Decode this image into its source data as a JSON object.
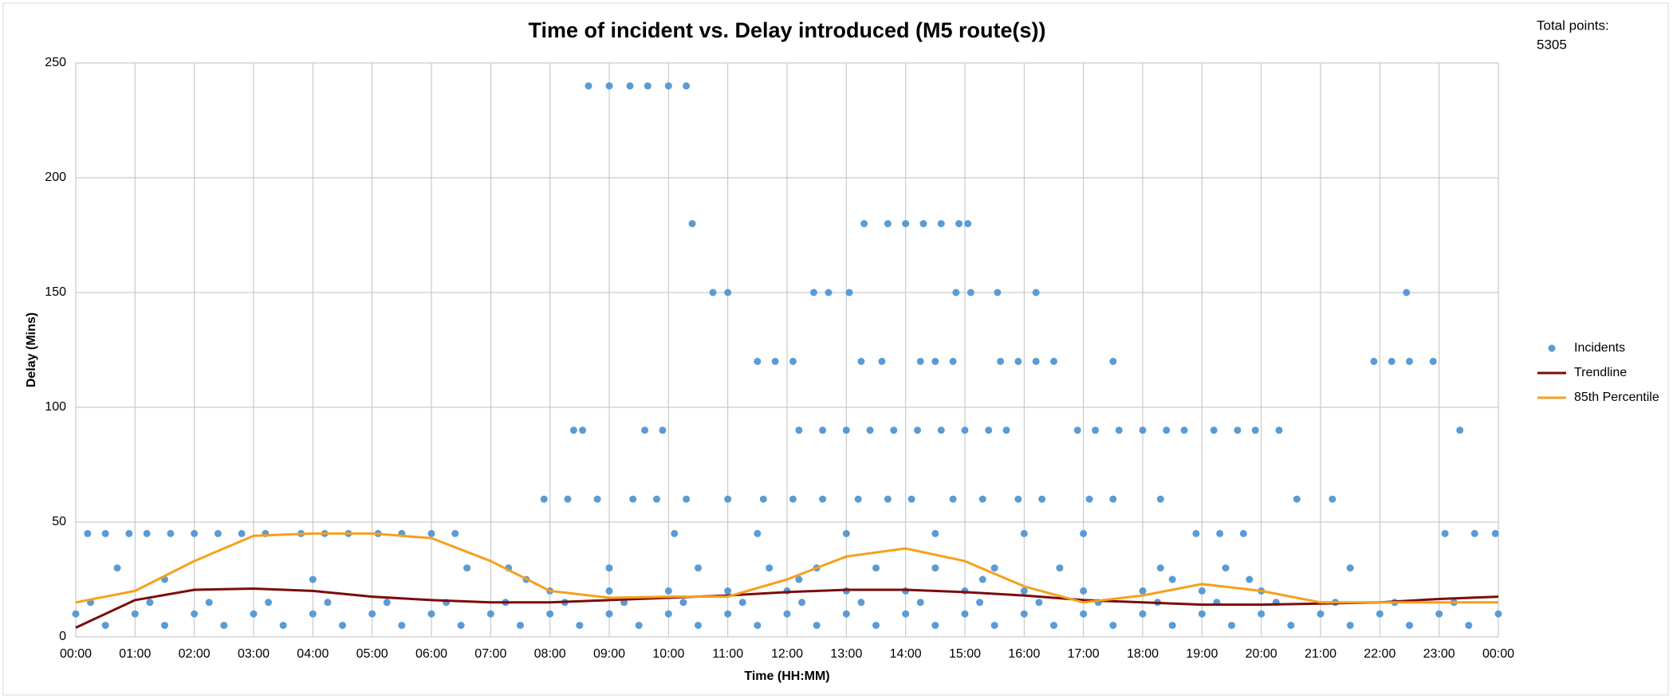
{
  "chart_data": {
    "type": "scatter",
    "title": "Time of incident vs. Delay introduced (M5 route(s))",
    "annotation": [
      "Total points:",
      "5305"
    ],
    "xlabel": "Time (HH:MM)",
    "ylabel": "Delay (Mins)",
    "xlim": [
      0,
      24
    ],
    "ylim": [
      0,
      250
    ],
    "grid": true,
    "legend": "right",
    "xticks": [
      {
        "value": 0,
        "label": "00:00"
      },
      {
        "value": 1,
        "label": "01:00"
      },
      {
        "value": 2,
        "label": "02:00"
      },
      {
        "value": 3,
        "label": "03:00"
      },
      {
        "value": 4,
        "label": "04:00"
      },
      {
        "value": 5,
        "label": "05:00"
      },
      {
        "value": 6,
        "label": "06:00"
      },
      {
        "value": 7,
        "label": "07:00"
      },
      {
        "value": 8,
        "label": "08:00"
      },
      {
        "value": 9,
        "label": "09:00"
      },
      {
        "value": 10,
        "label": "10:00"
      },
      {
        "value": 11,
        "label": "11:00"
      },
      {
        "value": 12,
        "label": "12:00"
      },
      {
        "value": 13,
        "label": "13:00"
      },
      {
        "value": 14,
        "label": "14:00"
      },
      {
        "value": 15,
        "label": "15:00"
      },
      {
        "value": 16,
        "label": "16:00"
      },
      {
        "value": 17,
        "label": "17:00"
      },
      {
        "value": 18,
        "label": "18:00"
      },
      {
        "value": 19,
        "label": "19:00"
      },
      {
        "value": 20,
        "label": "20:00"
      },
      {
        "value": 21,
        "label": "21:00"
      },
      {
        "value": 22,
        "label": "22:00"
      },
      {
        "value": 23,
        "label": "23:00"
      },
      {
        "value": 24,
        "label": "00:00"
      }
    ],
    "yticks": [
      0,
      50,
      100,
      150,
      200,
      250
    ],
    "series": [
      {
        "name": "Incidents",
        "type": "scatter",
        "color": "#5b9bd5",
        "x": [
          0.5,
          1.5,
          2.5,
          3.5,
          4.5,
          5.5,
          6.5,
          7.5,
          8.5,
          9.5,
          10.5,
          11.5,
          12.5,
          13.5,
          14.5,
          15.5,
          16.5,
          17.5,
          18.5,
          19.5,
          20.5,
          21.5,
          22.5,
          23.5,
          0,
          1,
          2,
          3,
          4,
          5,
          6,
          7,
          8,
          9,
          10,
          11,
          12,
          13,
          14,
          15,
          16,
          17,
          18,
          19,
          20,
          21,
          22,
          23,
          24,
          0.25,
          1.25,
          2.25,
          3.25,
          4.25,
          5.25,
          6.25,
          7.25,
          8.25,
          9.25,
          10.25,
          11.25,
          12.25,
          13.25,
          14.25,
          15.25,
          16.25,
          17.25,
          18.25,
          19.25,
          20.25,
          21.25,
          22.25,
          23.25,
          8,
          9,
          10,
          11,
          12,
          13,
          14,
          15,
          16,
          17,
          18,
          19,
          20,
          1.5,
          4,
          7.6,
          12.2,
          15.3,
          18.5,
          19.8,
          0.7,
          6.6,
          7.3,
          9,
          10.5,
          11.7,
          12.5,
          13.5,
          14.5,
          15.5,
          16.6,
          18.3,
          19.4,
          21.5,
          0.2,
          0.5,
          0.9,
          1.2,
          1.6,
          2,
          2.4,
          2.8,
          3.2,
          3.8,
          4.2,
          4.6,
          5.1,
          5.5,
          6,
          6.4,
          10.1,
          11.5,
          13,
          14.5,
          16,
          17,
          18.9,
          19.3,
          19.7,
          23.1,
          23.6,
          23.95,
          7.9,
          8.3,
          8.8,
          9.4,
          9.8,
          10.3,
          11,
          11.6,
          12.1,
          12.6,
          13.2,
          13.7,
          14.1,
          14.8,
          15.3,
          15.9,
          16.3,
          17.1,
          17.5,
          18.3,
          20.6,
          21.2,
          8.4,
          8.55,
          9.6,
          9.9,
          12.2,
          12.6,
          13,
          13.4,
          13.8,
          14.2,
          14.6,
          15,
          15.4,
          15.7,
          16.9,
          17.2,
          17.6,
          18,
          18.4,
          18.7,
          19.2,
          19.6,
          19.9,
          20.3,
          23.35,
          11.5,
          11.8,
          12.1,
          13.25,
          13.6,
          14.25,
          14.5,
          14.8,
          15.6,
          15.9,
          16.2,
          16.5,
          17.5,
          21.9,
          22.2,
          22.5,
          22.9,
          10.75,
          11,
          12.45,
          12.7,
          13.05,
          14.85,
          15.1,
          15.55,
          16.2,
          22.45,
          10.4,
          13.3,
          13.7,
          14,
          14.3,
          14.6,
          14.9,
          15.05,
          8.65,
          9,
          9.35,
          9.65,
          10,
          10.3
        ],
        "values": [
          5,
          5,
          5,
          5,
          5,
          5,
          5,
          5,
          5,
          5,
          5,
          5,
          5,
          5,
          5,
          5,
          5,
          5,
          5,
          5,
          5,
          5,
          5,
          5,
          10,
          10,
          10,
          10,
          10,
          10,
          10,
          10,
          10,
          10,
          10,
          10,
          10,
          10,
          10,
          10,
          10,
          10,
          10,
          10,
          10,
          10,
          10,
          10,
          10,
          15,
          15,
          15,
          15,
          15,
          15,
          15,
          15,
          15,
          15,
          15,
          15,
          15,
          15,
          15,
          15,
          15,
          15,
          15,
          15,
          15,
          15,
          15,
          15,
          20,
          20,
          20,
          20,
          20,
          20,
          20,
          20,
          20,
          20,
          20,
          20,
          20,
          25,
          25,
          25,
          25,
          25,
          25,
          25,
          30,
          30,
          30,
          30,
          30,
          30,
          30,
          30,
          30,
          30,
          30,
          30,
          30,
          30,
          45,
          45,
          45,
          45,
          45,
          45,
          45,
          45,
          45,
          45,
          45,
          45,
          45,
          45,
          45,
          45,
          45,
          45,
          45,
          45,
          45,
          45,
          45,
          45,
          45,
          45,
          45,
          45,
          60,
          60,
          60,
          60,
          60,
          60,
          60,
          60,
          60,
          60,
          60,
          60,
          60,
          60,
          60,
          60,
          60,
          60,
          60,
          60,
          60,
          60,
          90,
          90,
          90,
          90,
          90,
          90,
          90,
          90,
          90,
          90,
          90,
          90,
          90,
          90,
          90,
          90,
          90,
          90,
          90,
          90,
          90,
          90,
          90,
          90,
          90,
          120,
          120,
          120,
          120,
          120,
          120,
          120,
          120,
          120,
          120,
          120,
          120,
          120,
          120,
          120,
          120,
          120,
          150,
          150,
          150,
          150,
          150,
          150,
          150,
          150,
          150,
          150,
          180,
          180,
          180,
          180,
          180,
          180,
          180,
          180,
          240,
          240,
          240,
          240,
          240,
          240
        ]
      },
      {
        "name": "Trendline",
        "type": "line",
        "color": "#7b0c0c",
        "x": [
          0,
          1,
          2,
          3,
          4,
          5,
          6,
          7,
          8,
          9,
          10,
          11,
          12,
          13,
          14,
          15,
          16,
          17,
          18,
          19,
          20,
          21,
          22,
          23,
          24
        ],
        "values": [
          4,
          16,
          20.5,
          21,
          20,
          17.5,
          16,
          15,
          15,
          16,
          17,
          18,
          19.5,
          20.5,
          20.5,
          19.5,
          18,
          16,
          15,
          14,
          14,
          14.5,
          15,
          16.5,
          17.5
        ]
      },
      {
        "name": "85th Percentile",
        "type": "line",
        "color": "#f5a01c",
        "x": [
          0,
          1,
          2,
          3,
          4,
          5,
          6,
          7,
          8,
          9,
          10,
          11,
          12,
          13,
          14,
          15,
          16,
          17,
          18,
          19,
          20,
          21,
          22,
          23,
          24
        ],
        "values": [
          15,
          20,
          33,
          44,
          45,
          45,
          43,
          33,
          20,
          17,
          17.5,
          17.5,
          25,
          35,
          38.5,
          33,
          22,
          15,
          18,
          23,
          20,
          15,
          15,
          15,
          15
        ]
      }
    ]
  }
}
